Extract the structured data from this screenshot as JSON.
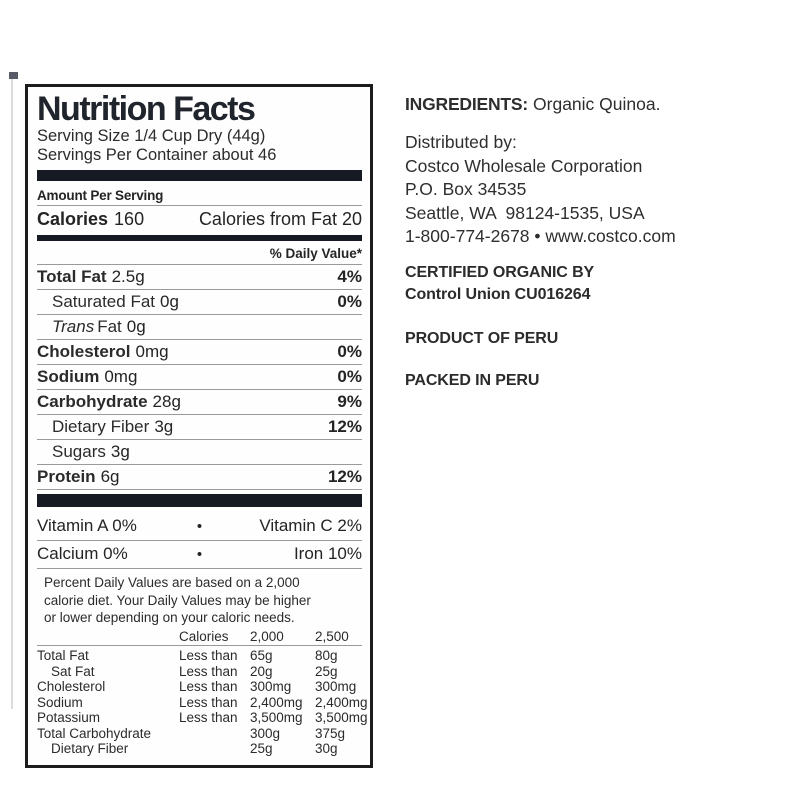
{
  "colors": {
    "bar": "#161b23",
    "border": "#1c1c1c",
    "hairline": "#9a9a9a",
    "background": "#ffffff"
  },
  "nutrition_label": {
    "title": "Nutrition Facts",
    "serving_size": "Serving Size 1/4 Cup Dry (44g)",
    "servings_per_container": "Servings Per Container about 46",
    "amount_per_serving": "Amount Per Serving",
    "calories_label": "Calories",
    "calories_value": "160",
    "calories_from_fat": "Calories from Fat 20",
    "daily_value_header": "% Daily Value*",
    "rows": [
      {
        "name": "Total Fat",
        "amount": "2.5g",
        "dv": "4%"
      },
      {
        "name": "Saturated Fat",
        "amount": "0g",
        "dv": "0%"
      },
      {
        "name_italic": "Trans",
        "name": "Fat",
        "amount": "0g",
        "dv": ""
      },
      {
        "name": "Cholesterol",
        "amount": "0mg",
        "dv": "0%"
      },
      {
        "name": "Sodium",
        "amount": "0mg",
        "dv": "0%"
      },
      {
        "name": "Carbohydrate",
        "amount": "28g",
        "dv": "9%"
      },
      {
        "name": "Dietary Fiber",
        "amount": "3g",
        "dv": "12%"
      },
      {
        "name": "Sugars",
        "amount": "3g",
        "dv": ""
      },
      {
        "name": "Protein",
        "amount": "6g",
        "dv": "12%"
      }
    ],
    "micros": [
      {
        "left": "Vitamin A 0%",
        "sep": "•",
        "right": "Vitamin C 2%"
      },
      {
        "left": "Calcium 0%",
        "sep": "•",
        "right": "Iron 10%"
      }
    ],
    "footnote_lines": [
      "Percent Daily Values are based on a 2,000",
      "calorie diet. Your Daily Values may be higher",
      "or lower depending on your caloric needs."
    ],
    "ref_table": {
      "header": {
        "calories": "Calories",
        "c2000": "2,000",
        "c2500": "2,500"
      },
      "rows": [
        {
          "name": "Total Fat",
          "qual": "Less than",
          "v2000": "65g",
          "v2500": "80g"
        },
        {
          "name": "Sat Fat",
          "qual": "Less than",
          "v2000": "20g",
          "v2500": "25g"
        },
        {
          "name": "Cholesterol",
          "qual": "Less than",
          "v2000": "300mg",
          "v2500": "300mg"
        },
        {
          "name": "Sodium",
          "qual": "Less than",
          "v2000": "2,400mg",
          "v2500": "2,400mg"
        },
        {
          "name": "Potassium",
          "qual": "Less than",
          "v2000": "3,500mg",
          "v2500": "3,500mg"
        },
        {
          "name": "Total Carbohydrate",
          "qual": "",
          "v2000": "300g",
          "v2500": "375g"
        },
        {
          "name": "Dietary Fiber",
          "qual": "",
          "v2000": "25g",
          "v2500": "30g"
        }
      ]
    }
  },
  "info_panel": {
    "ingredients_label": "INGREDIENTS:",
    "ingredients_value": "Organic Quinoa.",
    "distributed_by": "Distributed by:",
    "distributor_lines": [
      "Costco Wholesale Corporation",
      "P.O. Box 34535",
      "Seattle, WA  98124-1535, USA",
      "1-800-774-2678 • www.costco.com"
    ],
    "certified_line1": "CERTIFIED ORGANIC BY",
    "certified_line2": "Control Union CU016264",
    "product_of": "PRODUCT OF PERU",
    "packed_in": "PACKED IN PERU"
  }
}
